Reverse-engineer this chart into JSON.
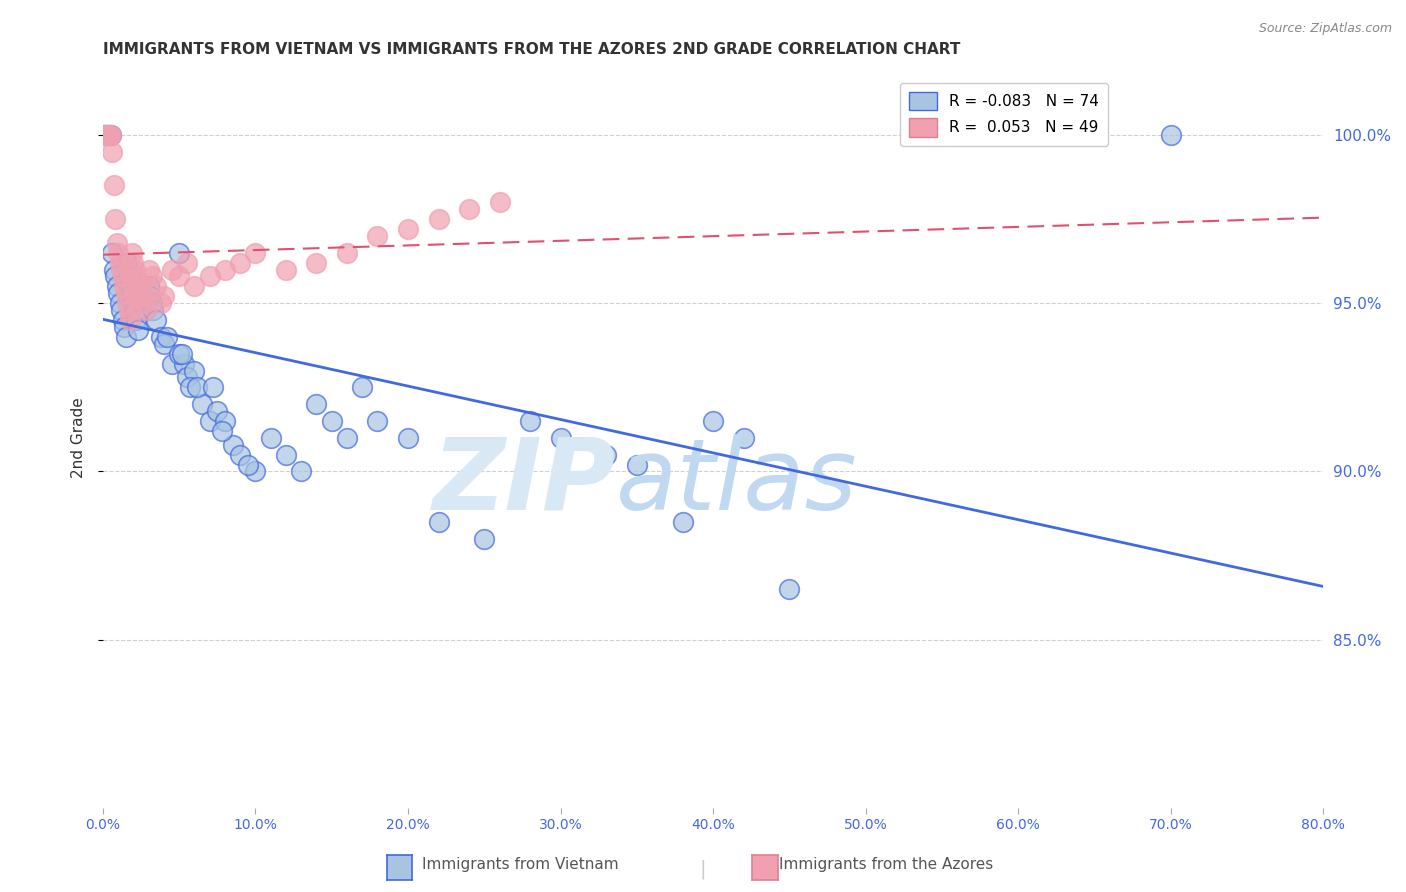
{
  "title": "IMMIGRANTS FROM VIETNAM VS IMMIGRANTS FROM THE AZORES 2ND GRADE CORRELATION CHART",
  "source": "Source: ZipAtlas.com",
  "ylabel": "2nd Grade",
  "xlim": [
    0.0,
    80.0
  ],
  "ylim": [
    80.0,
    102.0
  ],
  "legend_vietnam": "R = -0.083   N = 74",
  "legend_azores": "R =  0.053   N = 49",
  "vietnam_color": "#a8c4e0",
  "azores_color": "#f0a0b0",
  "vietnam_line_color": "#4169e1",
  "azores_line_color": "#e05070",
  "watermark_color": "#d8e8f4",
  "background_color": "#ffffff",
  "grid_color": "#d0d0d0",
  "bottom_legend_vietnam": "Immigrants from Vietnam",
  "bottom_legend_azores": "Immigrants from the Azores",
  "vietnam_x": [
    0.1,
    0.2,
    0.3,
    0.4,
    0.5,
    0.6,
    0.7,
    0.8,
    0.9,
    1.0,
    1.1,
    1.2,
    1.3,
    1.4,
    1.5,
    1.6,
    1.7,
    1.8,
    1.9,
    2.0,
    2.1,
    2.2,
    2.3,
    2.5,
    2.6,
    2.7,
    2.8,
    3.0,
    3.1,
    3.2,
    3.3,
    3.5,
    3.8,
    4.0,
    4.2,
    4.5,
    5.0,
    5.3,
    5.5,
    6.0,
    6.5,
    7.0,
    7.5,
    8.0,
    8.5,
    9.0,
    10.0,
    11.0,
    12.0,
    13.0,
    14.0,
    15.0,
    16.0,
    17.0,
    18.0,
    20.0,
    22.0,
    25.0,
    28.0,
    30.0,
    33.0,
    35.0,
    38.0,
    40.0,
    42.0,
    45.0,
    70.0,
    5.0,
    5.2,
    5.7,
    6.2,
    7.2,
    7.8,
    9.5
  ],
  "vietnam_y": [
    100.0,
    100.0,
    100.0,
    100.0,
    100.0,
    96.5,
    96.0,
    95.8,
    95.5,
    95.3,
    95.0,
    94.8,
    94.5,
    94.3,
    94.0,
    96.2,
    95.8,
    95.5,
    95.3,
    95.0,
    94.8,
    94.5,
    94.2,
    95.5,
    95.2,
    95.0,
    94.8,
    95.5,
    95.2,
    95.0,
    94.8,
    94.5,
    94.0,
    93.8,
    94.0,
    93.2,
    96.5,
    93.2,
    92.8,
    93.0,
    92.0,
    91.5,
    91.8,
    91.5,
    90.8,
    90.5,
    90.0,
    91.0,
    90.5,
    90.0,
    92.0,
    91.5,
    91.0,
    92.5,
    91.5,
    91.0,
    88.5,
    88.0,
    91.5,
    91.0,
    90.5,
    90.2,
    88.5,
    91.5,
    91.0,
    86.5,
    100.0,
    93.5,
    93.5,
    92.5,
    92.5,
    92.5,
    91.2,
    90.2
  ],
  "azores_x": [
    0.1,
    0.2,
    0.3,
    0.4,
    0.5,
    0.6,
    0.7,
    0.8,
    0.9,
    1.0,
    1.1,
    1.2,
    1.3,
    1.4,
    1.5,
    1.6,
    1.7,
    1.8,
    1.9,
    2.0,
    2.1,
    2.2,
    2.3,
    2.4,
    2.5,
    2.6,
    2.7,
    2.8,
    3.0,
    3.2,
    3.5,
    3.8,
    4.0,
    4.5,
    5.0,
    5.5,
    6.0,
    7.0,
    8.0,
    9.0,
    10.0,
    12.0,
    14.0,
    16.0,
    18.0,
    20.0,
    22.0,
    24.0,
    26.0
  ],
  "azores_y": [
    100.0,
    100.0,
    100.0,
    100.0,
    100.0,
    99.5,
    98.5,
    97.5,
    96.8,
    96.5,
    96.2,
    96.0,
    95.8,
    95.5,
    95.3,
    95.0,
    94.8,
    94.5,
    96.5,
    96.2,
    96.0,
    95.8,
    95.5,
    95.2,
    95.5,
    95.2,
    95.0,
    94.8,
    96.0,
    95.8,
    95.5,
    95.0,
    95.2,
    96.0,
    95.8,
    96.2,
    95.5,
    95.8,
    96.0,
    96.2,
    96.5,
    96.0,
    96.2,
    96.5,
    97.0,
    97.2,
    97.5,
    97.8,
    98.0
  ]
}
